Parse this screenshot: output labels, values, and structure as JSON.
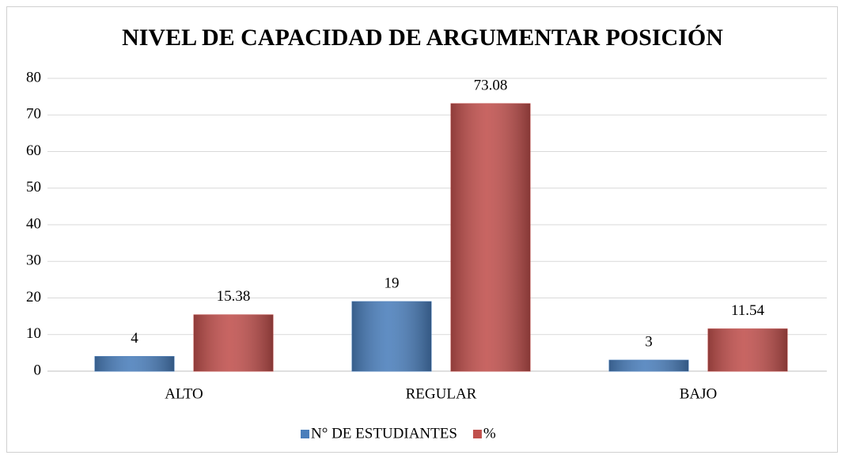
{
  "chart_data": {
    "type": "bar",
    "title": "NIVEL DE CAPACIDAD DE ARGUMENTAR POSICIÓN",
    "categories": [
      "ALTO",
      "REGULAR",
      "BAJO"
    ],
    "series": [
      {
        "name": "N° DE ESTUDIANTES",
        "color": "#4a7ebb",
        "values": [
          4,
          19,
          3
        ]
      },
      {
        "name": "%",
        "color": "#c0504d",
        "values": [
          15.38,
          73.08,
          11.54
        ]
      }
    ],
    "ylim": [
      0,
      80
    ],
    "yticks": [
      0,
      10,
      20,
      30,
      40,
      50,
      60,
      70,
      80
    ],
    "grid": true,
    "legend": "bottom"
  }
}
